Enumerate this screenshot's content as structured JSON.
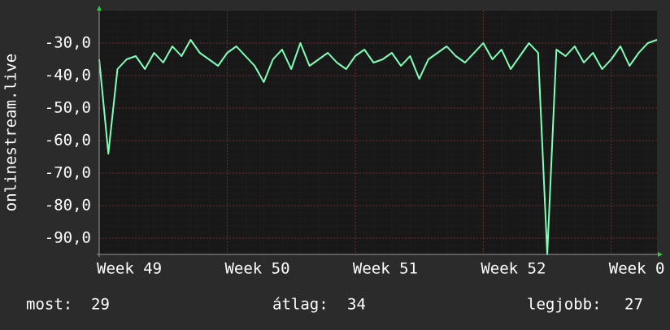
{
  "chart_data": {
    "type": "line",
    "ylabel": "onlinestream.live",
    "x": [
      0,
      0.5,
      1,
      1.5,
      2,
      2.5,
      3,
      3.5,
      4,
      4.5,
      5,
      5.5,
      6,
      6.5,
      7,
      7.5,
      8,
      8.5,
      9,
      9.5,
      10,
      10.5,
      11,
      11.5,
      12,
      12.5,
      13,
      13.5,
      14,
      14.5,
      15,
      15.5,
      16,
      16.5,
      17,
      17.5,
      18,
      18.5,
      19,
      19.5,
      20,
      20.5,
      21,
      21.5,
      22,
      22.5,
      23,
      23.5,
      24,
      24.5,
      25,
      25.5,
      26,
      26.5,
      27,
      27.5,
      28,
      28.5,
      29,
      29.5,
      30,
      30.5
    ],
    "series": [
      {
        "color": "#80ffb8",
        "values": [
          -35,
          -64,
          -38,
          -35,
          -34,
          -38,
          -33,
          -36,
          -31,
          -34,
          -29,
          -33,
          -35,
          -37,
          -33,
          -31,
          -34,
          -37,
          -42,
          -35,
          -32,
          -38,
          -30,
          -37,
          -35,
          -33,
          -36,
          -38,
          -34,
          -32,
          -36,
          -35,
          -33,
          -37,
          -34,
          -41,
          -35,
          -33,
          -31,
          -34,
          -36,
          -33,
          -30,
          -35,
          -32,
          -38,
          -34,
          -30,
          -33,
          -95,
          -32,
          -34,
          -31,
          -36,
          -33,
          -38,
          -35,
          -31,
          -37,
          -33,
          -30,
          -29
        ]
      }
    ],
    "xlim": [
      0,
      30.5
    ],
    "xticks": [
      {
        "value": 0,
        "label": "Week 49"
      },
      {
        "value": 7,
        "label": "Week 50"
      },
      {
        "value": 14,
        "label": "Week 51"
      },
      {
        "value": 21,
        "label": "Week 52"
      },
      {
        "value": 28,
        "label": "Week 0"
      }
    ],
    "ylim": [
      -95,
      -20
    ],
    "yticks": [
      {
        "value": -90,
        "label": "-90,0"
      },
      {
        "value": -80,
        "label": "-80,0"
      },
      {
        "value": -70,
        "label": "-70,0"
      },
      {
        "value": -60,
        "label": "-60,0"
      },
      {
        "value": -50,
        "label": "-50,0"
      },
      {
        "value": -40,
        "label": "-40,0"
      },
      {
        "value": -30,
        "label": "-30,0"
      }
    ],
    "grid": true,
    "stats": [
      {
        "label": "most:",
        "value": 29
      },
      {
        "label": "átlag:",
        "value": 34
      },
      {
        "label": "legjobb:",
        "value": 27
      }
    ]
  }
}
